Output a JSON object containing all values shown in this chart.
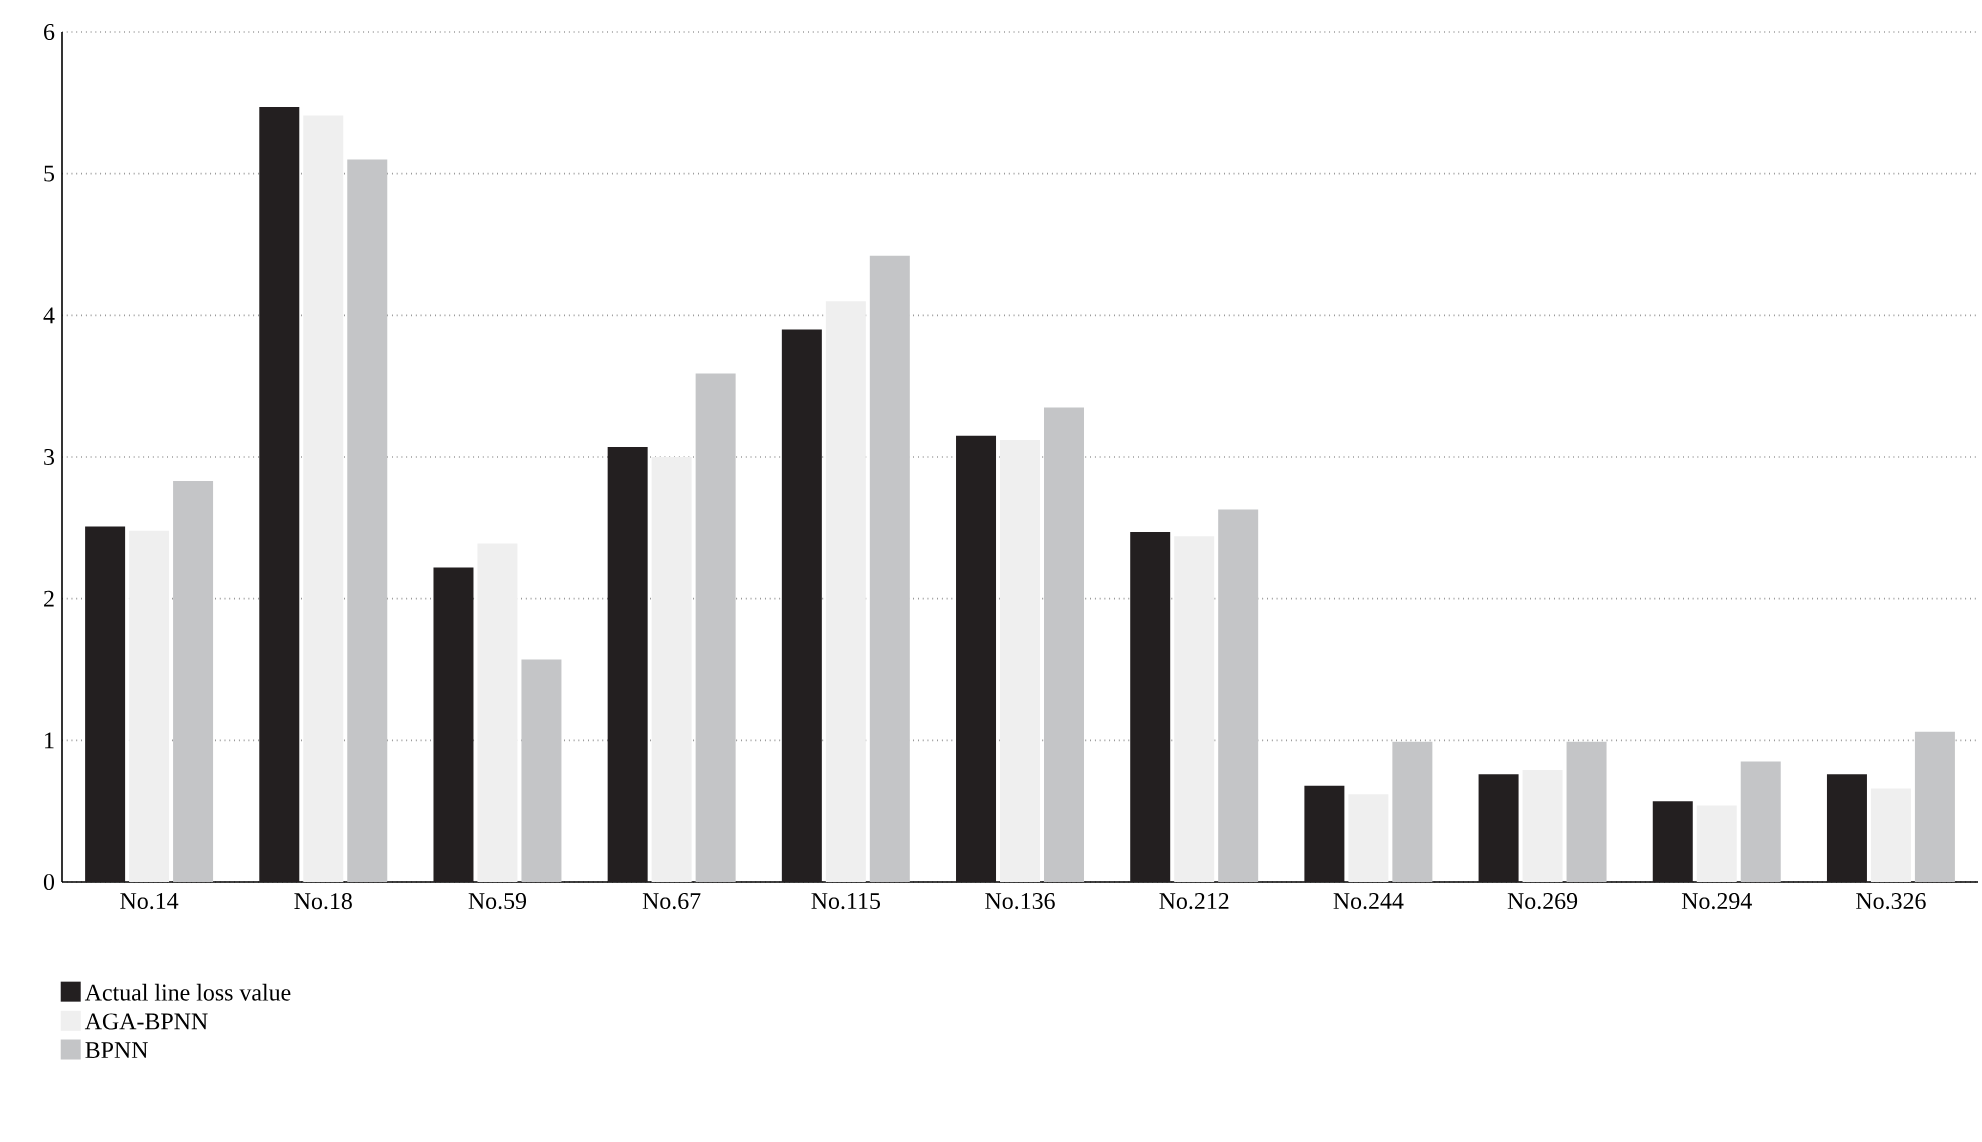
{
  "chart_data": {
    "type": "bar",
    "categories": [
      "No.14",
      "No.18",
      "No.59",
      "No.67",
      "No.115",
      "No.136",
      "No.212",
      "No.244",
      "No.269",
      "No.294",
      "No.326"
    ],
    "series": [
      {
        "name": "Actual line loss value",
        "color": "#231f20",
        "values": [
          2.51,
          5.47,
          2.22,
          3.07,
          3.9,
          3.15,
          2.47,
          0.68,
          0.76,
          0.57,
          0.76
        ]
      },
      {
        "name": "AGA-BPNN",
        "color": "#efefef",
        "values": [
          2.48,
          5.41,
          2.39,
          3.0,
          4.1,
          3.12,
          2.44,
          0.62,
          0.79,
          0.54,
          0.66
        ]
      },
      {
        "name": "BPNN",
        "color": "#c4c5c7",
        "values": [
          2.83,
          5.1,
          1.57,
          3.59,
          4.42,
          3.35,
          2.63,
          0.99,
          0.99,
          0.85,
          1.06
        ]
      }
    ],
    "ylim": [
      0,
      6
    ],
    "yticks": [
      0,
      1,
      2,
      3,
      4,
      5,
      6
    ],
    "grid": "y",
    "legend": "bottom left"
  }
}
